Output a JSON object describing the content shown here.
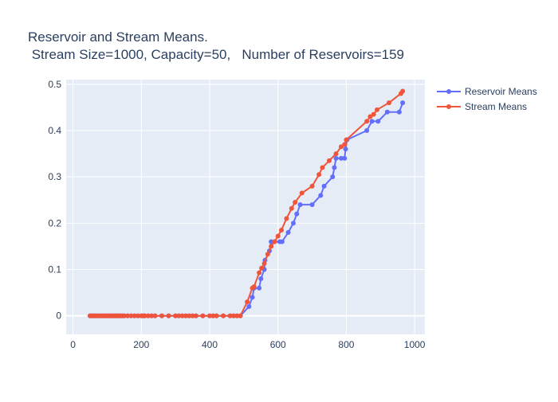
{
  "chart_data": {
    "type": "line",
    "title_lines": [
      "Reservoir and Stream Means.",
      " Stream Size=1000, Capacity=50,   Number of Reservoirs=159"
    ],
    "xlabel": "",
    "ylabel": "",
    "xlim": [
      -20,
      1030
    ],
    "ylim": [
      -0.04,
      0.51
    ],
    "xticks": [
      0,
      200,
      400,
      600,
      800,
      1000
    ],
    "yticks": [
      0,
      0.1,
      0.2,
      0.3,
      0.4,
      0.5
    ],
    "ytick_labels": [
      "0",
      "0.1",
      "0.2",
      "0.3",
      "0.4",
      "0.5"
    ],
    "grid": true,
    "legend_position": "top-right",
    "colors": {
      "plot_bg": "#e5ecf6",
      "grid": "#ffffff",
      "text": "#2a3f5f"
    },
    "series": [
      {
        "name": "Reservoir Means",
        "color": "#636efa",
        "points": [
          [
            50,
            0
          ],
          [
            55,
            0
          ],
          [
            60,
            0
          ],
          [
            65,
            0
          ],
          [
            70,
            0
          ],
          [
            75,
            0
          ],
          [
            80,
            0
          ],
          [
            85,
            0
          ],
          [
            90,
            0
          ],
          [
            95,
            0
          ],
          [
            100,
            0
          ],
          [
            105,
            0
          ],
          [
            110,
            0
          ],
          [
            115,
            0
          ],
          [
            120,
            0
          ],
          [
            125,
            0
          ],
          [
            130,
            0
          ],
          [
            135,
            0
          ],
          [
            140,
            0
          ],
          [
            145,
            0
          ],
          [
            150,
            0
          ],
          [
            160,
            0
          ],
          [
            170,
            0
          ],
          [
            180,
            0
          ],
          [
            190,
            0
          ],
          [
            200,
            0
          ],
          [
            205,
            0
          ],
          [
            210,
            0
          ],
          [
            220,
            0
          ],
          [
            230,
            0
          ],
          [
            240,
            0
          ],
          [
            260,
            0
          ],
          [
            280,
            0
          ],
          [
            300,
            0
          ],
          [
            310,
            0
          ],
          [
            320,
            0
          ],
          [
            330,
            0
          ],
          [
            340,
            0
          ],
          [
            350,
            0
          ],
          [
            360,
            0
          ],
          [
            380,
            0
          ],
          [
            400,
            0
          ],
          [
            410,
            0
          ],
          [
            420,
            0
          ],
          [
            440,
            0
          ],
          [
            460,
            0
          ],
          [
            470,
            0
          ],
          [
            480,
            0
          ],
          [
            490,
            0
          ],
          [
            515,
            0.02
          ],
          [
            525,
            0.04
          ],
          [
            530,
            0.06
          ],
          [
            545,
            0.06
          ],
          [
            550,
            0.08
          ],
          [
            560,
            0.1
          ],
          [
            562,
            0.12
          ],
          [
            575,
            0.14
          ],
          [
            580,
            0.16
          ],
          [
            590,
            0.16
          ],
          [
            605,
            0.16
          ],
          [
            612,
            0.16
          ],
          [
            630,
            0.18
          ],
          [
            645,
            0.2
          ],
          [
            655,
            0.22
          ],
          [
            665,
            0.24
          ],
          [
            700,
            0.24
          ],
          [
            725,
            0.26
          ],
          [
            735,
            0.28
          ],
          [
            760,
            0.3
          ],
          [
            765,
            0.32
          ],
          [
            770,
            0.34
          ],
          [
            785,
            0.34
          ],
          [
            795,
            0.34
          ],
          [
            798,
            0.36
          ],
          [
            802,
            0.38
          ],
          [
            860,
            0.4
          ],
          [
            875,
            0.42
          ],
          [
            893,
            0.42
          ],
          [
            920,
            0.44
          ],
          [
            955,
            0.44
          ],
          [
            965,
            0.46
          ]
        ]
      },
      {
        "name": "Stream Means",
        "color": "#ef553b",
        "points": [
          [
            50,
            0
          ],
          [
            55,
            0
          ],
          [
            60,
            0
          ],
          [
            65,
            0
          ],
          [
            70,
            0
          ],
          [
            75,
            0
          ],
          [
            80,
            0
          ],
          [
            85,
            0
          ],
          [
            90,
            0
          ],
          [
            95,
            0
          ],
          [
            100,
            0
          ],
          [
            105,
            0
          ],
          [
            110,
            0
          ],
          [
            115,
            0
          ],
          [
            120,
            0
          ],
          [
            125,
            0
          ],
          [
            130,
            0
          ],
          [
            135,
            0
          ],
          [
            140,
            0
          ],
          [
            145,
            0
          ],
          [
            150,
            0
          ],
          [
            160,
            0
          ],
          [
            170,
            0
          ],
          [
            180,
            0
          ],
          [
            190,
            0
          ],
          [
            200,
            0
          ],
          [
            205,
            0
          ],
          [
            210,
            0
          ],
          [
            220,
            0
          ],
          [
            230,
            0
          ],
          [
            240,
            0
          ],
          [
            260,
            0
          ],
          [
            280,
            0
          ],
          [
            300,
            0
          ],
          [
            310,
            0
          ],
          [
            320,
            0
          ],
          [
            330,
            0
          ],
          [
            340,
            0
          ],
          [
            350,
            0
          ],
          [
            360,
            0
          ],
          [
            380,
            0
          ],
          [
            400,
            0
          ],
          [
            410,
            0
          ],
          [
            420,
            0
          ],
          [
            440,
            0
          ],
          [
            460,
            0
          ],
          [
            470,
            0
          ],
          [
            480,
            0
          ],
          [
            490,
            0
          ],
          [
            510,
            0.03
          ],
          [
            525,
            0.06
          ],
          [
            530,
            0.063
          ],
          [
            545,
            0.093
          ],
          [
            552,
            0.103
          ],
          [
            560,
            0.113
          ],
          [
            570,
            0.133
          ],
          [
            580,
            0.15
          ],
          [
            590,
            0.16
          ],
          [
            600,
            0.172
          ],
          [
            610,
            0.185
          ],
          [
            625,
            0.21
          ],
          [
            640,
            0.232
          ],
          [
            650,
            0.245
          ],
          [
            670,
            0.265
          ],
          [
            700,
            0.28
          ],
          [
            720,
            0.305
          ],
          [
            730,
            0.32
          ],
          [
            750,
            0.335
          ],
          [
            770,
            0.35
          ],
          [
            785,
            0.365
          ],
          [
            795,
            0.37
          ],
          [
            800,
            0.38
          ],
          [
            860,
            0.42
          ],
          [
            870,
            0.43
          ],
          [
            880,
            0.435
          ],
          [
            890,
            0.445
          ],
          [
            925,
            0.46
          ],
          [
            960,
            0.48
          ],
          [
            965,
            0.485
          ]
        ]
      }
    ]
  }
}
